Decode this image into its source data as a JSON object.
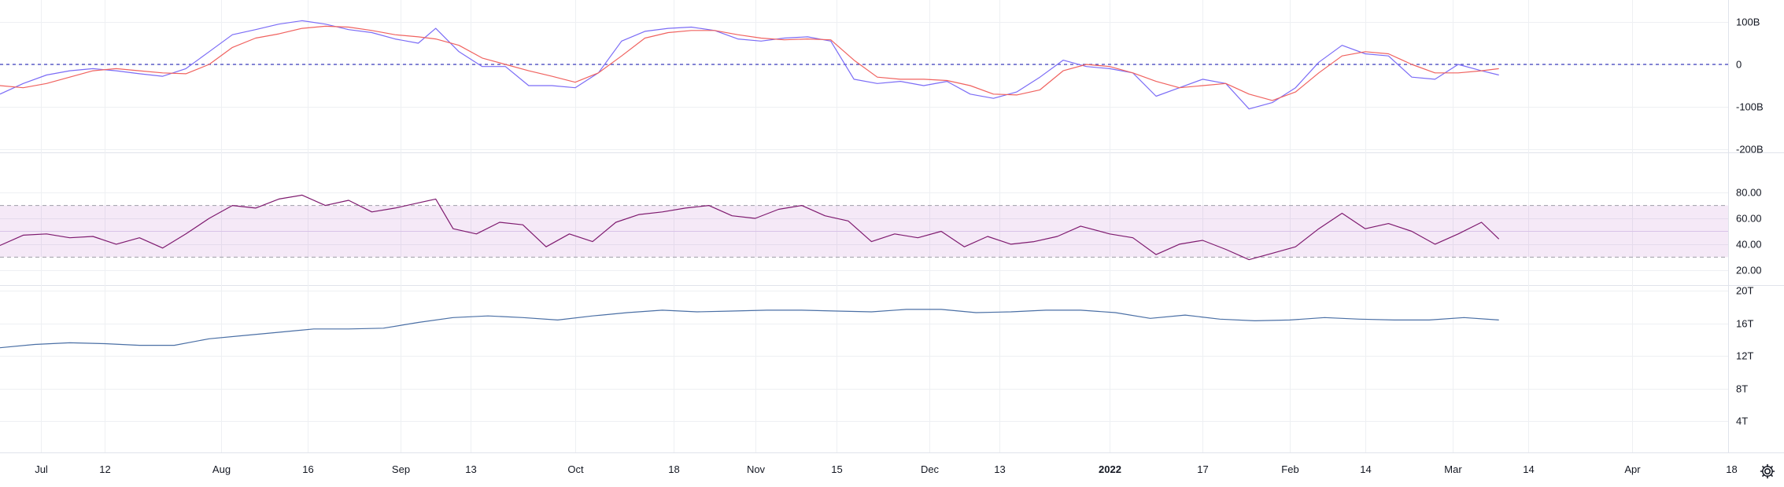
{
  "chart_data": [
    {
      "type": "line",
      "panel": "oscillator",
      "y_tick_labels": [
        "100B",
        "0",
        "-100B",
        "-200B"
      ],
      "y_ticks": [
        100,
        0,
        -100,
        -200
      ],
      "ylim": [
        -200,
        100
      ],
      "unit_scale": "B",
      "reference_line": 0,
      "series": [
        {
          "color": "#7b6cf6",
          "x": [
            "2021-06-24",
            "2021-06-28",
            "2021-07-02",
            "2021-07-06",
            "2021-07-10",
            "2021-07-14",
            "2021-07-18",
            "2021-07-22",
            "2021-07-26",
            "2021-07-30",
            "2021-08-03",
            "2021-08-07",
            "2021-08-11",
            "2021-08-15",
            "2021-08-19",
            "2021-08-23",
            "2021-08-27",
            "2021-08-31",
            "2021-09-04",
            "2021-09-07",
            "2021-09-11",
            "2021-09-15",
            "2021-09-19",
            "2021-09-23",
            "2021-09-27",
            "2021-10-01",
            "2021-10-05",
            "2021-10-09",
            "2021-10-13",
            "2021-10-17",
            "2021-10-21",
            "2021-10-25",
            "2021-10-29",
            "2021-11-02",
            "2021-11-06",
            "2021-11-10",
            "2021-11-14",
            "2021-11-18",
            "2021-11-22",
            "2021-11-26",
            "2021-11-30",
            "2021-12-04",
            "2021-12-08",
            "2021-12-12",
            "2021-12-16",
            "2021-12-20",
            "2021-12-24",
            "2021-12-28",
            "2022-01-01",
            "2022-01-05",
            "2022-01-09",
            "2022-01-13",
            "2022-01-17",
            "2022-01-21",
            "2022-01-25",
            "2022-01-29",
            "2022-02-02",
            "2022-02-06",
            "2022-02-10",
            "2022-02-14",
            "2022-02-18",
            "2022-02-22",
            "2022-02-26",
            "2022-03-02",
            "2022-03-06",
            "2022-03-09"
          ],
          "values": [
            -70,
            -45,
            -25,
            -15,
            -10,
            -15,
            -22,
            -28,
            -10,
            30,
            70,
            82,
            95,
            103,
            95,
            82,
            75,
            60,
            50,
            85,
            30,
            -5,
            -5,
            -50,
            -50,
            -55,
            -20,
            55,
            78,
            85,
            88,
            80,
            60,
            55,
            62,
            65,
            55,
            -35,
            -45,
            -40,
            -50,
            -40,
            -70,
            -80,
            -65,
            -30,
            10,
            -5,
            -10,
            -20,
            -75,
            -55,
            -35,
            -45,
            -105,
            -90,
            -55,
            5,
            45,
            25,
            20,
            -30,
            -35,
            0,
            -15,
            -25
          ]
        },
        {
          "color": "#f0625f",
          "x": [
            "2021-06-24",
            "2021-06-28",
            "2021-07-02",
            "2021-07-06",
            "2021-07-10",
            "2021-07-14",
            "2021-07-18",
            "2021-07-22",
            "2021-07-26",
            "2021-07-30",
            "2021-08-03",
            "2021-08-07",
            "2021-08-11",
            "2021-08-15",
            "2021-08-19",
            "2021-08-23",
            "2021-08-27",
            "2021-08-31",
            "2021-09-04",
            "2021-09-07",
            "2021-09-11",
            "2021-09-15",
            "2021-09-19",
            "2021-09-23",
            "2021-09-27",
            "2021-10-01",
            "2021-10-05",
            "2021-10-09",
            "2021-10-13",
            "2021-10-17",
            "2021-10-21",
            "2021-10-25",
            "2021-10-29",
            "2021-11-02",
            "2021-11-06",
            "2021-11-10",
            "2021-11-14",
            "2021-11-18",
            "2021-11-22",
            "2021-11-26",
            "2021-11-30",
            "2021-12-04",
            "2021-12-08",
            "2021-12-12",
            "2021-12-16",
            "2021-12-20",
            "2021-12-24",
            "2021-12-28",
            "2022-01-01",
            "2022-01-05",
            "2022-01-09",
            "2022-01-13",
            "2022-01-17",
            "2022-01-21",
            "2022-01-25",
            "2022-01-29",
            "2022-02-02",
            "2022-02-06",
            "2022-02-10",
            "2022-02-14",
            "2022-02-18",
            "2022-02-22",
            "2022-02-26",
            "2022-03-02",
            "2022-03-06",
            "2022-03-09"
          ],
          "values": [
            -50,
            -55,
            -45,
            -30,
            -15,
            -10,
            -15,
            -20,
            -22,
            0,
            40,
            62,
            72,
            85,
            90,
            88,
            80,
            70,
            65,
            60,
            45,
            15,
            0,
            -15,
            -28,
            -42,
            -20,
            20,
            62,
            75,
            80,
            80,
            70,
            62,
            58,
            60,
            58,
            10,
            -30,
            -35,
            -35,
            -38,
            -50,
            -70,
            -72,
            -60,
            -15,
            0,
            -5,
            -20,
            -40,
            -55,
            -50,
            -45,
            -70,
            -85,
            -65,
            -20,
            20,
            30,
            25,
            0,
            -20,
            -20,
            -15,
            -10
          ]
        }
      ]
    },
    {
      "type": "line",
      "panel": "rsi",
      "y_tick_labels": [
        "80.00",
        "60.00",
        "40.00",
        "20.00"
      ],
      "y_ticks": [
        80,
        60,
        40,
        20
      ],
      "ylim": [
        15,
        88
      ],
      "band": [
        30,
        70
      ],
      "band_mid": 50,
      "band_color": "#9c27b0",
      "series": [
        {
          "color": "#7e1a6f",
          "x": [
            "2021-06-24",
            "2021-06-28",
            "2021-07-02",
            "2021-07-06",
            "2021-07-10",
            "2021-07-14",
            "2021-07-18",
            "2021-07-22",
            "2021-07-26",
            "2021-07-30",
            "2021-08-03",
            "2021-08-07",
            "2021-08-11",
            "2021-08-15",
            "2021-08-19",
            "2021-08-23",
            "2021-08-27",
            "2021-08-31",
            "2021-09-04",
            "2021-09-07",
            "2021-09-10",
            "2021-09-14",
            "2021-09-18",
            "2021-09-22",
            "2021-09-26",
            "2021-09-30",
            "2021-10-04",
            "2021-10-08",
            "2021-10-12",
            "2021-10-16",
            "2021-10-20",
            "2021-10-24",
            "2021-10-28",
            "2021-11-01",
            "2021-11-05",
            "2021-11-09",
            "2021-11-13",
            "2021-11-17",
            "2021-11-21",
            "2021-11-25",
            "2021-11-29",
            "2021-12-03",
            "2021-12-07",
            "2021-12-11",
            "2021-12-15",
            "2021-12-19",
            "2021-12-23",
            "2021-12-27",
            "2022-01-01",
            "2022-01-05",
            "2022-01-09",
            "2022-01-13",
            "2022-01-17",
            "2022-01-21",
            "2022-01-25",
            "2022-01-29",
            "2022-02-02",
            "2022-02-06",
            "2022-02-10",
            "2022-02-14",
            "2022-02-18",
            "2022-02-22",
            "2022-02-26",
            "2022-03-02",
            "2022-03-06",
            "2022-03-09"
          ],
          "values": [
            39,
            47,
            48,
            45,
            46,
            40,
            45,
            37,
            48,
            60,
            70,
            68,
            75,
            78,
            70,
            74,
            65,
            68,
            72,
            75,
            52,
            48,
            57,
            55,
            38,
            48,
            42,
            57,
            63,
            65,
            68,
            70,
            62,
            60,
            67,
            70,
            62,
            58,
            42,
            48,
            45,
            50,
            38,
            46,
            40,
            42,
            46,
            54,
            48,
            45,
            32,
            40,
            43,
            36,
            28,
            33,
            38,
            52,
            64,
            52,
            56,
            50,
            40,
            48,
            57,
            44
          ]
        }
      ]
    },
    {
      "type": "line",
      "panel": "volume",
      "y_tick_labels": [
        "20T",
        "16T",
        "12T",
        "8T",
        "4T"
      ],
      "y_ticks": [
        20,
        16,
        12,
        8,
        4
      ],
      "ylim": [
        1.7,
        20
      ],
      "unit_scale": "T",
      "series": [
        {
          "color": "#4a6fa5",
          "x": [
            "2021-06-24",
            "2021-06-30",
            "2021-07-06",
            "2021-07-12",
            "2021-07-18",
            "2021-07-24",
            "2021-07-30",
            "2021-08-05",
            "2021-08-11",
            "2021-08-17",
            "2021-08-23",
            "2021-08-29",
            "2021-09-04",
            "2021-09-10",
            "2021-09-16",
            "2021-09-22",
            "2021-09-28",
            "2021-10-04",
            "2021-10-10",
            "2021-10-16",
            "2021-10-22",
            "2021-10-28",
            "2021-11-03",
            "2021-11-09",
            "2021-11-15",
            "2021-11-21",
            "2021-11-27",
            "2021-12-03",
            "2021-12-09",
            "2021-12-15",
            "2021-12-21",
            "2021-12-27",
            "2022-01-02",
            "2022-01-08",
            "2022-01-14",
            "2022-01-20",
            "2022-01-26",
            "2022-02-01",
            "2022-02-07",
            "2022-02-13",
            "2022-02-19",
            "2022-02-25",
            "2022-03-03",
            "2022-03-09"
          ],
          "values": [
            13.0,
            13.4,
            13.6,
            13.5,
            13.3,
            13.3,
            14.1,
            14.5,
            14.9,
            15.3,
            15.3,
            15.4,
            16.1,
            16.7,
            16.9,
            16.7,
            16.4,
            16.9,
            17.3,
            17.6,
            17.4,
            17.5,
            17.6,
            17.6,
            17.5,
            17.4,
            17.7,
            17.7,
            17.3,
            17.4,
            17.6,
            17.6,
            17.3,
            16.6,
            17.0,
            16.5,
            16.3,
            16.4,
            16.7,
            16.5,
            16.4,
            16.4,
            16.7,
            16.4
          ]
        }
      ]
    }
  ],
  "x_axis": {
    "ticks": [
      {
        "label": "Jul",
        "date": "2021-07-01",
        "bold": false
      },
      {
        "label": "12",
        "date": "2021-07-12",
        "bold": false
      },
      {
        "label": "Aug",
        "date": "2021-08-01",
        "bold": false
      },
      {
        "label": "16",
        "date": "2021-08-16",
        "bold": false
      },
      {
        "label": "Sep",
        "date": "2021-09-01",
        "bold": false
      },
      {
        "label": "13",
        "date": "2021-09-13",
        "bold": false
      },
      {
        "label": "Oct",
        "date": "2021-10-01",
        "bold": false
      },
      {
        "label": "18",
        "date": "2021-10-18",
        "bold": false
      },
      {
        "label": "Nov",
        "date": "2021-11-01",
        "bold": false
      },
      {
        "label": "15",
        "date": "2021-11-15",
        "bold": false
      },
      {
        "label": "Dec",
        "date": "2021-12-01",
        "bold": false
      },
      {
        "label": "13",
        "date": "2021-12-13",
        "bold": false
      },
      {
        "label": "2022",
        "date": "2022-01-01",
        "bold": true
      },
      {
        "label": "17",
        "date": "2022-01-17",
        "bold": false
      },
      {
        "label": "Feb",
        "date": "2022-02-01",
        "bold": false
      },
      {
        "label": "14",
        "date": "2022-02-14",
        "bold": false
      },
      {
        "label": "Mar",
        "date": "2022-03-01",
        "bold": false
      },
      {
        "label": "14",
        "date": "2022-03-14",
        "bold": false
      },
      {
        "label": "Apr",
        "date": "2022-04-01",
        "bold": false
      },
      {
        "label": "18",
        "date": "2022-04-18",
        "bold": false
      }
    ]
  },
  "colors": {
    "grid": "#eef0f3",
    "border": "#e0e3eb",
    "reference": "#3f3fbf",
    "text": "#131722"
  },
  "icons": {
    "settings": "gear-icon"
  }
}
